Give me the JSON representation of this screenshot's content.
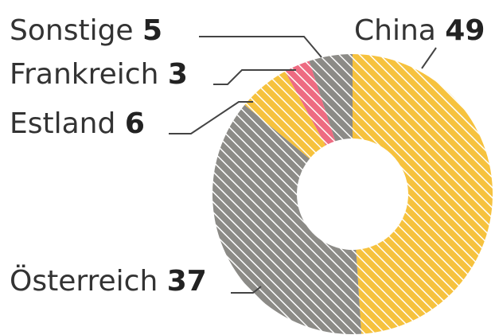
{
  "chart_data": {
    "type": "donut",
    "categories": [
      "China",
      "Österreich",
      "Estland",
      "Frankreich",
      "Sonstige"
    ],
    "values": [
      49,
      37,
      6,
      3,
      5
    ],
    "colors": [
      "#f6c23e",
      "#8c8b87",
      "#f6c23e",
      "#ee6b82",
      "#8c8b87"
    ],
    "hatched": true
  }
}
